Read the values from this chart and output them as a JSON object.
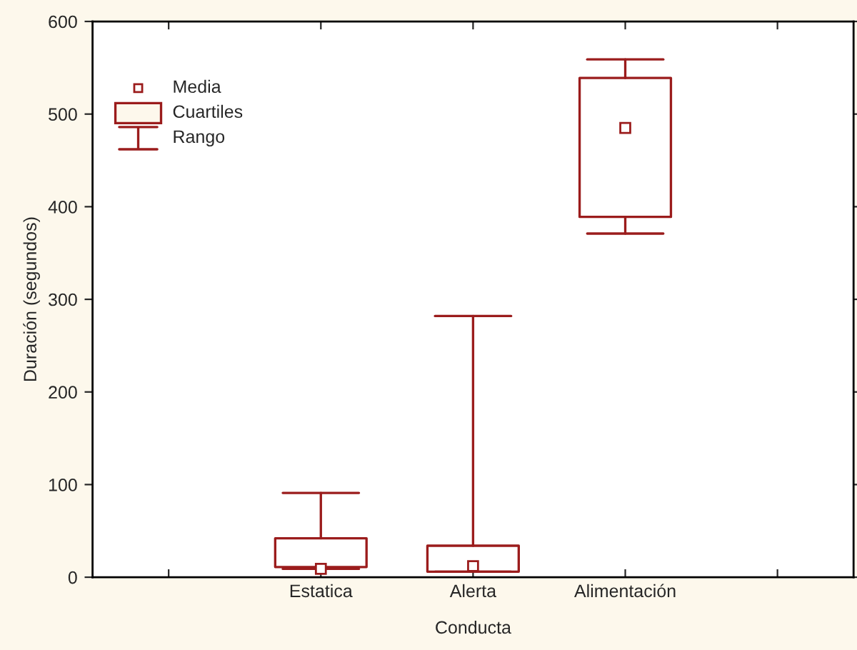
{
  "chart_data": {
    "type": "box",
    "xlabel": "Conducta",
    "ylabel": "Duración (segundos)",
    "categories": [
      null,
      "Estatica",
      "Alerta",
      "Alimentación",
      null
    ],
    "color": "#9b1c1c",
    "boxes": [
      null,
      {
        "low": 9,
        "q1": 11,
        "q3": 42,
        "high": 91,
        "mean": 9
      },
      {
        "low": 6,
        "q1": 6,
        "q3": 34,
        "high": 282,
        "mean": 12
      },
      {
        "low": 371,
        "q1": 389,
        "q3": 539,
        "high": 559,
        "mean": 485
      },
      null
    ],
    "ylim": [
      0,
      600
    ],
    "yticks": [
      0,
      100,
      200,
      300,
      400,
      500,
      600
    ],
    "grid": false,
    "annotations": [
      "Media",
      "Cuartiles",
      "Rango"
    ]
  }
}
